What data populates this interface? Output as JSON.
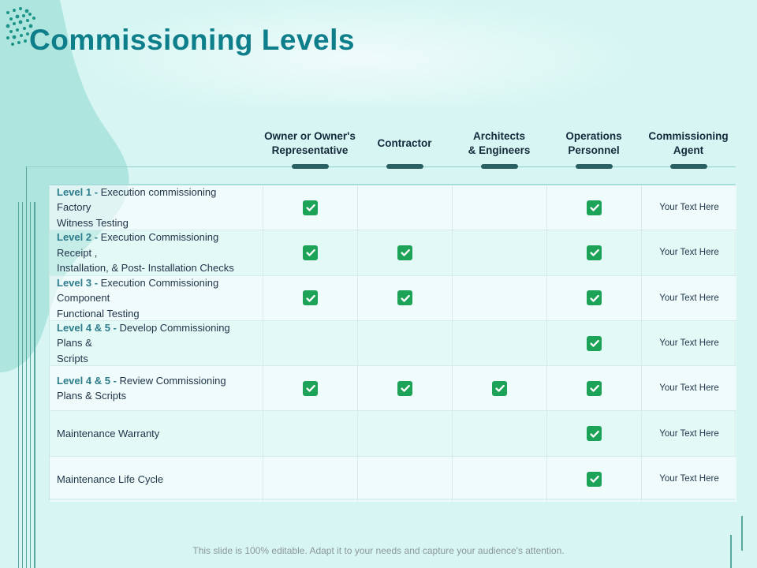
{
  "slide": {
    "title": "Commissioning Levels",
    "footer": "This slide is 100% editable. Adapt it to your needs and capture your audience's attention."
  },
  "table": {
    "columns": [
      "Owner or Owner's\nRepresentative",
      "Contractor",
      "Architects\n& Engineers",
      "Operations\nPersonnel",
      "Commissioning\nAgent"
    ],
    "rows": [
      {
        "prefix": "Level 1 - ",
        "label": "Execution commissioning Factory\nWitness Testing",
        "checks": [
          true,
          false,
          false,
          true
        ],
        "note": "Your Text Here"
      },
      {
        "prefix": "Level 2 - ",
        "label": "Execution Commissioning Receipt ,\nInstallation, & Post- Installation Checks",
        "checks": [
          true,
          true,
          false,
          true
        ],
        "note": "Your Text Here"
      },
      {
        "prefix": "Level 3 - ",
        "label": "Execution Commissioning Component\nFunctional Testing",
        "checks": [
          true,
          true,
          false,
          true
        ],
        "note": "Your Text Here"
      },
      {
        "prefix": "Level 4 & 5 - ",
        "label": "Develop Commissioning Plans &\nScripts",
        "checks": [
          false,
          false,
          false,
          true
        ],
        "note": "Your Text Here"
      },
      {
        "prefix": "Level 4 & 5 - ",
        "label": "Review Commissioning\nPlans & Scripts",
        "checks": [
          true,
          true,
          true,
          true
        ],
        "note": "Your Text Here"
      },
      {
        "prefix": "",
        "label": "Maintenance Warranty",
        "checks": [
          false,
          false,
          false,
          true
        ],
        "note": "Your Text Here"
      },
      {
        "prefix": "",
        "label": "Maintenance Life Cycle",
        "checks": [
          false,
          false,
          false,
          true
        ],
        "note": "Your Text Here"
      }
    ]
  },
  "colors": {
    "background": "#d7f6f3",
    "blob": "#aee5df",
    "title_teal": "#0e7e8b",
    "header_text": "#15293c",
    "pill_dark_teal": "#2a5f63",
    "level_prefix_teal": "#2d7c8c",
    "body_text": "#1e3248",
    "check_green": "#1ca358",
    "line_teal": "#57a79f",
    "footer_gray": "#8b969b"
  },
  "icons": {
    "check": "checkmark-icon",
    "dots": "dots-pattern-icon",
    "blob": "corner-blob"
  }
}
